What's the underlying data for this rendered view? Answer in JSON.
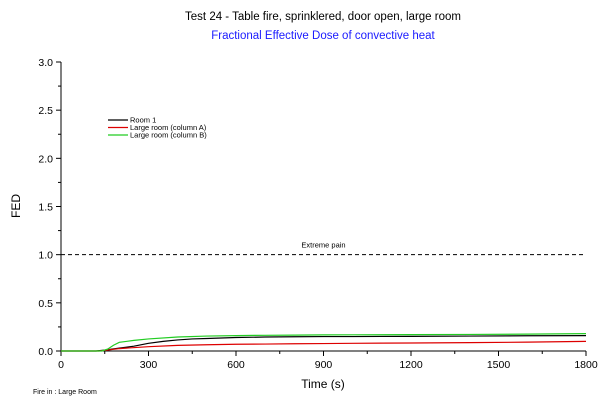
{
  "chart_data": {
    "type": "line",
    "title": "Test 24 - Table fire, sprinklered, door open, large room",
    "subtitle": "Fractional Effective Dose of convective heat",
    "xlabel": "Time (s)",
    "ylabel": "FED",
    "xlim": [
      0,
      1800
    ],
    "ylim": [
      0,
      3.0
    ],
    "x_ticks": [
      0,
      300,
      600,
      900,
      1200,
      1500,
      1800
    ],
    "x_tick_labels": [
      "0",
      "300",
      "600",
      "900",
      "1200",
      "1500",
      "1800"
    ],
    "y_ticks": [
      0,
      0.5,
      1.0,
      1.5,
      2.0,
      2.5,
      3.0
    ],
    "y_tick_labels": [
      "0.0",
      "0.5",
      "1.0",
      "1.5",
      "2.0",
      "2.5",
      "3.0"
    ],
    "grid": false,
    "legend_position": "top-left",
    "series": [
      {
        "name": "Room 1",
        "color": "#000000",
        "x": [
          0,
          120,
          150,
          200,
          250,
          300,
          350,
          400,
          450,
          500,
          600,
          700,
          800,
          900,
          1000,
          1200,
          1400,
          1600,
          1800
        ],
        "y": [
          0,
          0,
          0.01,
          0.03,
          0.05,
          0.08,
          0.1,
          0.115,
          0.125,
          0.13,
          0.14,
          0.145,
          0.148,
          0.15,
          0.15,
          0.152,
          0.155,
          0.158,
          0.16
        ]
      },
      {
        "name": "Large room (column A)",
        "color": "#dd0000",
        "x": [
          0,
          130,
          160,
          200,
          300,
          400,
          500,
          600,
          700,
          800,
          900,
          1000,
          1200,
          1400,
          1600,
          1800
        ],
        "y": [
          0,
          0,
          0.01,
          0.025,
          0.045,
          0.058,
          0.065,
          0.07,
          0.072,
          0.075,
          0.077,
          0.08,
          0.083,
          0.087,
          0.092,
          0.1
        ]
      },
      {
        "name": "Large room (column B)",
        "color": "#22cc22",
        "x": [
          0,
          140,
          160,
          180,
          200,
          250,
          300,
          400,
          500,
          600,
          700,
          800,
          900,
          1000,
          1200,
          1400,
          1600,
          1800
        ],
        "y": [
          0,
          0,
          0.02,
          0.06,
          0.09,
          0.11,
          0.125,
          0.145,
          0.155,
          0.16,
          0.163,
          0.165,
          0.167,
          0.168,
          0.17,
          0.172,
          0.175,
          0.18
        ]
      }
    ],
    "reference_lines": [
      {
        "y": 1.0,
        "style": "dashed",
        "color": "#000000",
        "label": "Extreme pain"
      }
    ],
    "footnote": "Fire in : Large Room"
  }
}
